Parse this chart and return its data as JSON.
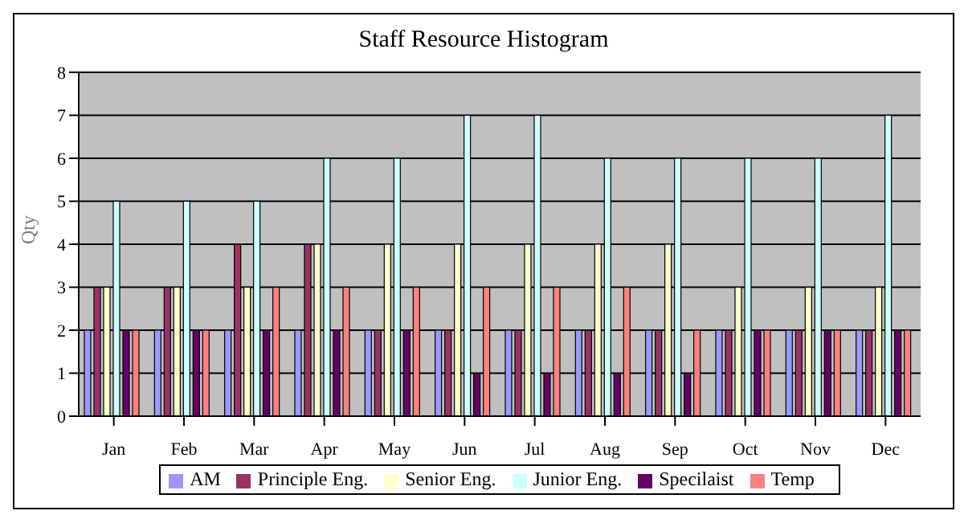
{
  "chart_data": {
    "type": "bar",
    "title": "Staff Resource Histogram",
    "ylabel": "Qty",
    "categories": [
      "Jan",
      "Feb",
      "Mar",
      "Apr",
      "May",
      "Jun",
      "Jul",
      "Aug",
      "Sep",
      "Oct",
      "Nov",
      "Dec"
    ],
    "series": [
      {
        "name": "AM",
        "color": "#9999ff",
        "values": [
          2,
          2,
          2,
          2,
          2,
          2,
          2,
          2,
          2,
          2,
          2,
          2
        ]
      },
      {
        "name": "Principle Eng.",
        "color": "#993366",
        "values": [
          3,
          3,
          4,
          4,
          2,
          2,
          2,
          2,
          2,
          2,
          2,
          2
        ]
      },
      {
        "name": "Senior Eng.",
        "color": "#ffffcc",
        "values": [
          3,
          3,
          3,
          4,
          4,
          4,
          4,
          4,
          4,
          3,
          3,
          3
        ]
      },
      {
        "name": "Junior Eng.",
        "color": "#ccffff",
        "values": [
          5,
          5,
          5,
          6,
          6,
          7,
          7,
          6,
          6,
          6,
          6,
          7
        ]
      },
      {
        "name": "Specilaist",
        "color": "#660066",
        "values": [
          2,
          2,
          2,
          2,
          2,
          1,
          1,
          1,
          1,
          2,
          2,
          2
        ]
      },
      {
        "name": "Temp",
        "color": "#ff8080",
        "values": [
          2,
          2,
          3,
          3,
          3,
          3,
          3,
          3,
          2,
          2,
          2,
          2
        ]
      }
    ],
    "ylim": [
      0,
      8
    ],
    "yticks": [
      0,
      1,
      2,
      3,
      4,
      5,
      6,
      7,
      8
    ],
    "grid": "y",
    "legend": "bottom"
  }
}
